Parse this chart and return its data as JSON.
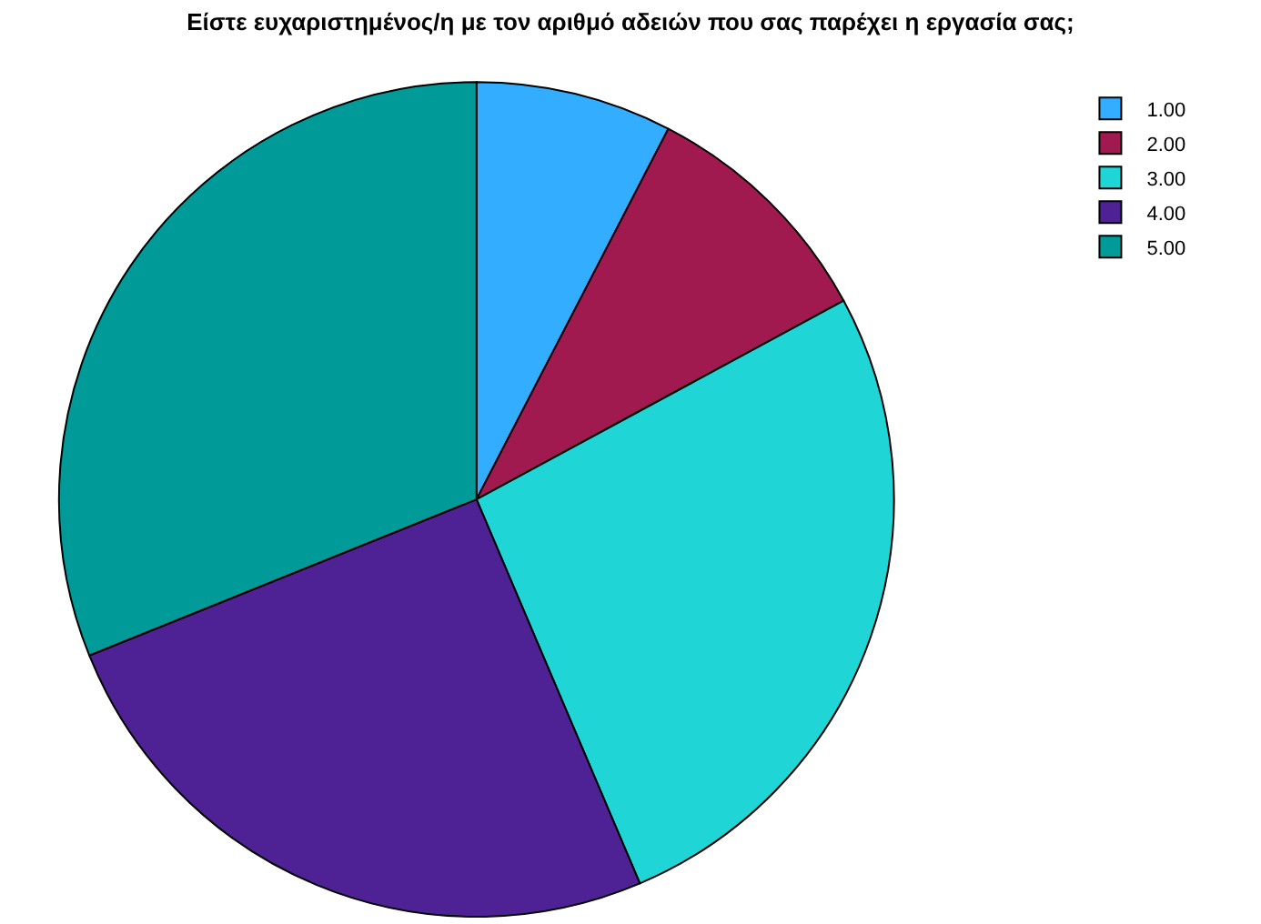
{
  "chart_data": {
    "type": "pie",
    "title": "Είστε ευχαριστημένος/η με τον αριθμό αδειών που σας παρέχει η εργασία σας;",
    "categories": [
      "1.00",
      "2.00",
      "3.00",
      "4.00",
      "5.00"
    ],
    "values": [
      7.6,
      9.5,
      26.5,
      25.3,
      31.1
    ],
    "colors": [
      "#33adff",
      "#a0194f",
      "#1fd5d5",
      "#4e2295",
      "#009b98"
    ],
    "legend": "top right"
  }
}
